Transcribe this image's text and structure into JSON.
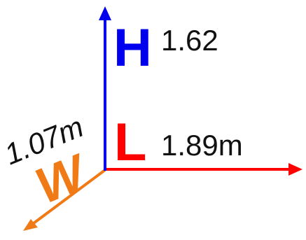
{
  "axes": {
    "height": {
      "letter": "H",
      "value": "1.62",
      "color": "#0000ee"
    },
    "length": {
      "letter": "L",
      "value": "1.89m",
      "color": "#ff0000"
    },
    "width": {
      "letter": "W",
      "value": "1.07m",
      "color": "#ef7a16"
    }
  },
  "colors": {
    "value_text": "#111111",
    "background": "#ffffff"
  }
}
